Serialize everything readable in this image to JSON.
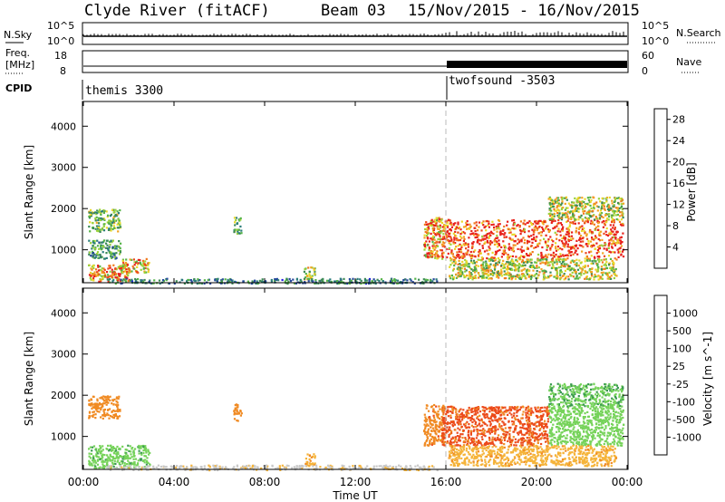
{
  "header": {
    "title": "Clyde River (fitACF)",
    "beam": "Beam 03",
    "dates": "15/Nov/2015 - 16/Nov/2015"
  },
  "top_panels": {
    "nsky": {
      "label": "N.Sky",
      "left_ticks": [
        "10^5",
        "10^0"
      ],
      "right_label": "N.Search",
      "right_ticks": [
        "10^5",
        "10^0"
      ]
    },
    "freq": {
      "label_line1": "Freq.",
      "label_line2": "[MHz]",
      "left_ticks": [
        "18",
        "8"
      ],
      "right_label": "Nave",
      "right_ticks": [
        "60",
        "0"
      ]
    },
    "cpid": {
      "label": "CPID",
      "segments": [
        "themis 3300",
        "twofsound -3503"
      ]
    }
  },
  "chart_data": [
    {
      "type": "heatmap",
      "name": "power",
      "ylabel": "Slant Range [km]",
      "y_ticks": [
        1000,
        2000,
        3000,
        4000
      ],
      "ylim": [
        200,
        4600
      ],
      "x_ticks": [
        "00:00",
        "04:00",
        "08:00",
        "12:00",
        "16:00",
        "20:00",
        "00:00"
      ],
      "xlim_hours": [
        0,
        24
      ],
      "colorbar": {
        "label": "Power [dB]",
        "ticks": [
          4,
          8,
          12,
          16,
          20,
          24,
          28
        ],
        "range": [
          0,
          30
        ],
        "colors": [
          "#1d17e6",
          "#25479c",
          "#2a7c7a",
          "#3c8a56",
          "#55b347",
          "#9bd23a",
          "#e9d92a",
          "#f2a422",
          "#f07a1e",
          "#ec4a1b",
          "#e8201a"
        ]
      },
      "regions": [
        {
          "t": [
            0.2,
            1.6
          ],
          "r": [
            1450,
            2000
          ],
          "v": 13
        },
        {
          "t": [
            0.2,
            2.0
          ],
          "r": [
            250,
            650
          ],
          "v": 22
        },
        {
          "t": [
            1.6,
            2.9
          ],
          "r": [
            450,
            800
          ],
          "v": 20
        },
        {
          "t": [
            0.2,
            1.6
          ],
          "r": [
            800,
            1250
          ],
          "v": 10
        },
        {
          "t": [
            6.6,
            6.95
          ],
          "r": [
            1400,
            1800
          ],
          "v": 12
        },
        {
          "t": [
            9.7,
            10.2
          ],
          "r": [
            300,
            600
          ],
          "v": 16
        },
        {
          "t": [
            1.0,
            15.6
          ],
          "r": [
            200,
            320
          ],
          "v": 8
        },
        {
          "t": [
            15.0,
            15.9
          ],
          "r": [
            800,
            1800
          ],
          "v": 22
        },
        {
          "t": [
            15.8,
            23.8
          ],
          "r": [
            800,
            1750
          ],
          "v": 27
        },
        {
          "t": [
            16.1,
            23.5
          ],
          "r": [
            300,
            800
          ],
          "v": 16
        },
        {
          "t": [
            20.5,
            23.8
          ],
          "r": [
            1750,
            2300
          ],
          "v": 16
        }
      ]
    },
    {
      "type": "heatmap",
      "name": "velocity",
      "ylabel": "Slant Range [km]",
      "y_ticks": [
        1000,
        2000,
        3000,
        4000
      ],
      "ylim": [
        200,
        4600
      ],
      "x_ticks": [
        "00:00",
        "04:00",
        "08:00",
        "12:00",
        "16:00",
        "20:00",
        "00:00"
      ],
      "xlabel": "Time UT",
      "xlim_hours": [
        0,
        24
      ],
      "colorbar": {
        "label": "Velocity [m s^-1]",
        "ticks": [
          1000,
          500,
          100,
          25,
          -25,
          -100,
          -500,
          -1000
        ],
        "range": [
          -1200,
          1200
        ],
        "colors": [
          "#e01616",
          "#ec4a1b",
          "#f08a22",
          "#f5b43a",
          "#c9c9c9",
          "#76d35a",
          "#3a9a50",
          "#2a7a7a",
          "#2a4aa8",
          "#1d17c8"
        ]
      },
      "regions": [
        {
          "t": [
            0.2,
            1.6
          ],
          "r": [
            1450,
            2000
          ],
          "v": -200
        },
        {
          "t": [
            0.2,
            2.9
          ],
          "r": [
            250,
            800
          ],
          "v": 80
        },
        {
          "t": [
            6.6,
            6.95
          ],
          "r": [
            1400,
            1800
          ],
          "v": -300
        },
        {
          "t": [
            9.7,
            10.2
          ],
          "r": [
            300,
            600
          ],
          "v": -100
        },
        {
          "t": [
            1.0,
            15.6
          ],
          "r": [
            200,
            320
          ],
          "v": -20
        },
        {
          "t": [
            15.0,
            15.9
          ],
          "r": [
            800,
            1800
          ],
          "v": -400
        },
        {
          "t": [
            15.8,
            20.5
          ],
          "r": [
            800,
            1750
          ],
          "v": -600
        },
        {
          "t": [
            20.5,
            23.8
          ],
          "r": [
            800,
            1750
          ],
          "v": 60
        },
        {
          "t": [
            16.1,
            23.5
          ],
          "r": [
            300,
            800
          ],
          "v": -80
        },
        {
          "t": [
            20.5,
            23.8
          ],
          "r": [
            1750,
            2300
          ],
          "v": 90
        }
      ]
    }
  ]
}
